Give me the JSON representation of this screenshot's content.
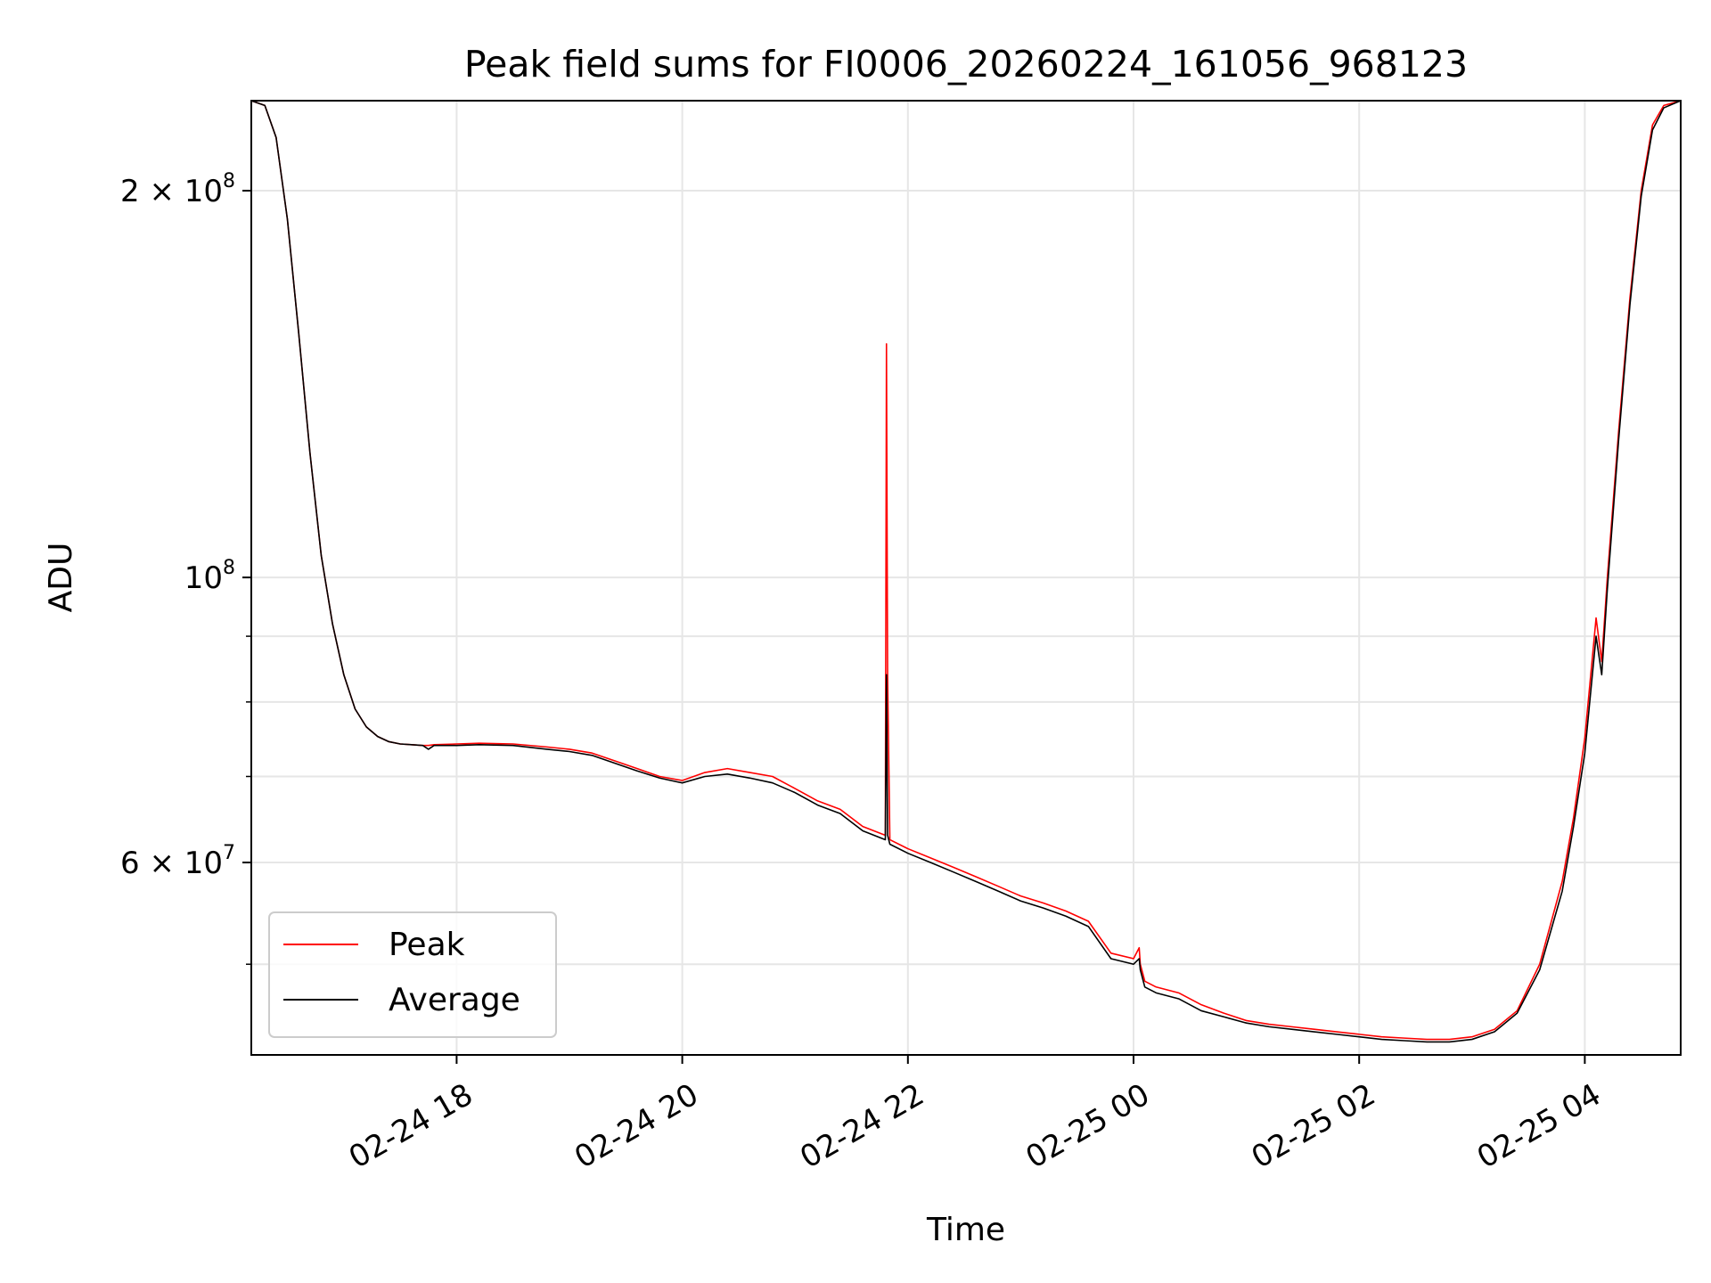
{
  "chart_data": {
    "type": "line",
    "title": "Peak field sums for FI0006_20260224_161056_968123",
    "xlabel": "Time",
    "ylabel": "ADU",
    "yscale": "log",
    "ylim": [
      42500000,
      235000000
    ],
    "xlim_hours": [
      16.18,
      28.85
    ],
    "grid": true,
    "legend_position": "lower left",
    "x_ticks": [
      {
        "label": "02-24 18",
        "hour": 18
      },
      {
        "label": "02-24 20",
        "hour": 20
      },
      {
        "label": "02-24 22",
        "hour": 22
      },
      {
        "label": "02-25 00",
        "hour": 24
      },
      {
        "label": "02-25 02",
        "hour": 26
      },
      {
        "label": "02-25 04",
        "hour": 28
      }
    ],
    "y_major_ticks": [
      {
        "value": 200000000,
        "mantissa": "2 × 10",
        "exp": "8"
      },
      {
        "value": 100000000,
        "mantissa": "10",
        "exp": "8"
      },
      {
        "value": 60000000,
        "mantissa": "6 × 10",
        "exp": "7"
      }
    ],
    "y_minor_ticks": [
      50000000,
      70000000,
      80000000,
      90000000
    ],
    "series": [
      {
        "name": "Peak",
        "color": "#ff0000",
        "x_hours": [
          16.18,
          16.3,
          16.4,
          16.5,
          16.6,
          16.7,
          16.8,
          16.9,
          17.0,
          17.1,
          17.2,
          17.3,
          17.4,
          17.5,
          17.6,
          17.7,
          17.75,
          17.8,
          18.0,
          18.2,
          18.5,
          18.8,
          19.0,
          19.2,
          19.4,
          19.6,
          19.8,
          20.0,
          20.2,
          20.4,
          20.6,
          20.8,
          21.0,
          21.2,
          21.4,
          21.6,
          21.8,
          21.81,
          21.82,
          21.84,
          22.0,
          22.2,
          22.4,
          22.6,
          22.8,
          23.0,
          23.2,
          23.4,
          23.6,
          23.8,
          24.0,
          24.05,
          24.06,
          24.1,
          24.2,
          24.4,
          24.6,
          24.8,
          25.0,
          25.2,
          25.4,
          25.6,
          25.8,
          26.0,
          26.2,
          26.4,
          26.6,
          26.8,
          27.0,
          27.2,
          27.4,
          27.6,
          27.8,
          27.9,
          28.0,
          28.1,
          28.15,
          28.2,
          28.3,
          28.4,
          28.5,
          28.6,
          28.7,
          28.85
        ],
        "values": [
          235000000,
          233000000,
          220000000,
          190000000,
          155000000,
          125000000,
          104000000,
          92000000,
          84000000,
          79000000,
          76500000,
          75200000,
          74500000,
          74200000,
          74100000,
          74000000,
          74000000,
          74100000,
          74200000,
          74300000,
          74200000,
          73800000,
          73500000,
          73000000,
          72000000,
          71000000,
          70000000,
          69500000,
          70500000,
          71000000,
          70500000,
          70000000,
          68500000,
          67000000,
          66000000,
          64000000,
          63000000,
          152000000,
          84000000,
          62500000,
          61500000,
          60500000,
          59500000,
          58500000,
          57500000,
          56500000,
          55800000,
          55000000,
          54000000,
          51000000,
          50500000,
          51500000,
          50000000,
          48500000,
          48000000,
          47500000,
          46500000,
          45800000,
          45200000,
          44900000,
          44700000,
          44500000,
          44300000,
          44100000,
          43900000,
          43800000,
          43700000,
          43700000,
          43900000,
          44500000,
          46000000,
          50000000,
          58000000,
          65000000,
          75000000,
          93000000,
          86000000,
          100000000,
          130000000,
          165000000,
          200000000,
          225000000,
          233000000,
          235000000
        ]
      },
      {
        "name": "Average",
        "color": "#000000",
        "x_hours": [
          16.18,
          16.3,
          16.4,
          16.5,
          16.6,
          16.7,
          16.8,
          16.9,
          17.0,
          17.1,
          17.2,
          17.3,
          17.4,
          17.5,
          17.6,
          17.7,
          17.75,
          17.8,
          18.0,
          18.2,
          18.5,
          18.8,
          19.0,
          19.2,
          19.4,
          19.6,
          19.8,
          20.0,
          20.2,
          20.4,
          20.6,
          20.8,
          21.0,
          21.2,
          21.4,
          21.6,
          21.8,
          21.81,
          21.82,
          21.84,
          22.0,
          22.2,
          22.4,
          22.6,
          22.8,
          23.0,
          23.2,
          23.4,
          23.6,
          23.8,
          24.0,
          24.05,
          24.06,
          24.1,
          24.2,
          24.4,
          24.6,
          24.8,
          25.0,
          25.2,
          25.4,
          25.6,
          25.8,
          26.0,
          26.2,
          26.4,
          26.6,
          26.8,
          27.0,
          27.2,
          27.4,
          27.6,
          27.8,
          27.9,
          28.0,
          28.1,
          28.15,
          28.2,
          28.3,
          28.4,
          28.5,
          28.6,
          28.7,
          28.85
        ],
        "values": [
          235000000,
          233000000,
          220000000,
          190000000,
          155000000,
          125000000,
          104000000,
          92000000,
          84000000,
          79000000,
          76500000,
          75200000,
          74500000,
          74200000,
          74100000,
          74000000,
          73500000,
          74000000,
          74000000,
          74100000,
          74000000,
          73500000,
          73200000,
          72700000,
          71700000,
          70700000,
          69800000,
          69200000,
          70000000,
          70300000,
          69800000,
          69200000,
          68000000,
          66500000,
          65500000,
          63500000,
          62500000,
          84000000,
          63000000,
          62000000,
          61000000,
          60000000,
          59000000,
          58000000,
          57000000,
          56000000,
          55300000,
          54500000,
          53500000,
          50500000,
          50000000,
          50500000,
          49500000,
          48000000,
          47500000,
          47000000,
          46000000,
          45500000,
          45000000,
          44700000,
          44500000,
          44300000,
          44100000,
          43900000,
          43700000,
          43600000,
          43500000,
          43500000,
          43700000,
          44300000,
          45800000,
          49500000,
          57000000,
          64000000,
          73000000,
          90000000,
          84000000,
          98000000,
          128000000,
          163000000,
          198000000,
          223000000,
          232000000,
          235000000
        ]
      }
    ]
  }
}
